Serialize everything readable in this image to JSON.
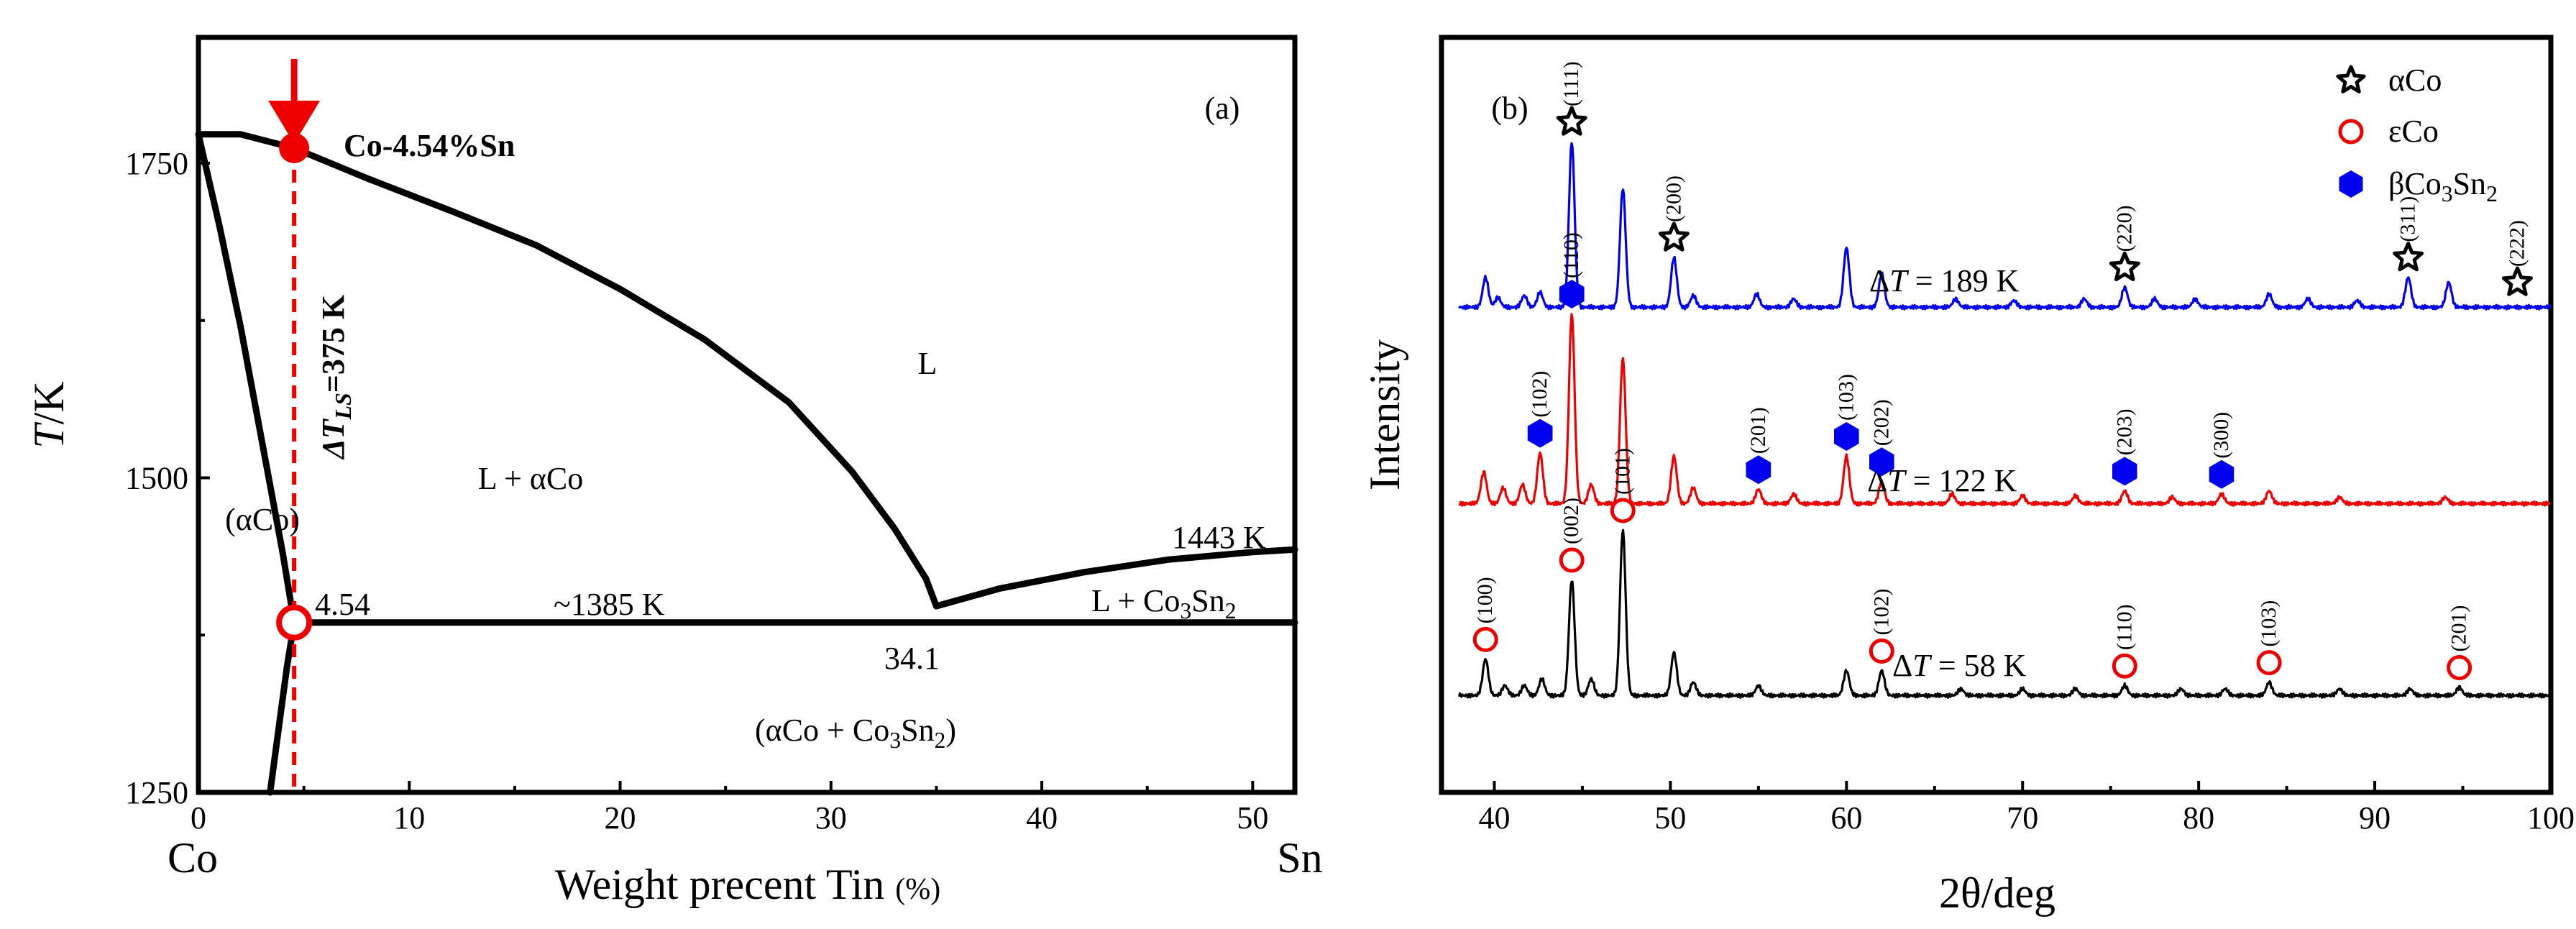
{
  "chart_data": [
    {
      "type": "line",
      "panel": "(a)",
      "title": "",
      "xlabel": "Weight precent Tin",
      "xlabel_unit": "(%)",
      "ylabel": "T/K",
      "xlim": [
        0,
        52
      ],
      "ylim": [
        1250,
        1850
      ],
      "xticks": [
        0,
        10,
        20,
        30,
        40,
        50
      ],
      "yticks": [
        1250,
        1500,
        1750
      ],
      "end_labels": {
        "left": "Co",
        "right": "Sn"
      },
      "series": [
        {
          "name": "liquidus_aCo",
          "x": [
            0,
            2,
            4.54,
            8,
            12,
            16,
            20,
            24,
            28,
            31,
            33,
            34.5,
            35
          ],
          "y": [
            1773,
            1773,
            1762,
            1738,
            1712,
            1685,
            1650,
            1610,
            1560,
            1505,
            1460,
            1420,
            1398
          ]
        },
        {
          "name": "liquidus_Co3Sn2",
          "x": [
            35,
            38,
            42,
            46,
            50,
            52
          ],
          "y": [
            1398,
            1412,
            1425,
            1435,
            1441,
            1443
          ]
        },
        {
          "name": "solidus",
          "x": [
            0,
            1,
            2,
            3,
            4,
            4.54
          ],
          "y": [
            1773,
            1700,
            1620,
            1530,
            1440,
            1385
          ]
        },
        {
          "name": "solvus",
          "x": [
            4.54,
            4.2,
            3.8,
            3.4
          ],
          "y": [
            1385,
            1350,
            1300,
            1250
          ]
        },
        {
          "name": "eutectic_line",
          "x": [
            4.54,
            52
          ],
          "y": [
            1385,
            1385
          ]
        }
      ],
      "annotations": {
        "alloy": "Co-4.54%Sn",
        "undercooling_prefix": "ΔT",
        "undercooling_sub": "LS",
        "undercooling_value": "=375 K",
        "phase_L": "L",
        "phase_L_aCo": "L + αCo",
        "phase_aCo": "(αCo)",
        "phase_L_Co3Sn2": [
          "L + Co",
          "3",
          "Sn",
          "2"
        ],
        "phase_aCo_Co3Sn2": [
          "(αCo + Co",
          "3",
          "Sn",
          "2",
          ")"
        ],
        "eutectic_temp": "~1385 K",
        "comp_solid": "4.54",
        "comp_eutectic": "34.1",
        "temp_1443": "1443 K"
      },
      "markers": {
        "alloy_x": 4.54,
        "liquidus_T": 1762,
        "solidus_T": 1385
      }
    },
    {
      "type": "line",
      "panel": "(b)",
      "xlabel": "2θ/deg",
      "ylabel": "Intensity",
      "xlim": [
        37,
        100
      ],
      "xticks": [
        40,
        50,
        60,
        70,
        80,
        90,
        100
      ],
      "legend": {
        "position": "top-right",
        "entries": [
          {
            "symbol": "star",
            "label": "αCo"
          },
          {
            "symbol": "circle",
            "label": "εCo"
          },
          {
            "symbol": "hexagon",
            "label_parts": [
              "βCo",
              "3",
              "Sn",
              "2"
            ]
          }
        ]
      },
      "series": [
        {
          "name": "ΔT = 189 K",
          "label_prefix": "Δ",
          "label_var": "T",
          "label_value": " = 189 K",
          "color": "#0000ee",
          "baseline": 0.0,
          "peaks": [
            [
              39.5,
              0.18
            ],
            [
              40.2,
              0.06
            ],
            [
              41.7,
              0.07
            ],
            [
              42.6,
              0.09
            ],
            [
              44.4,
              1.0
            ],
            [
              47.3,
              0.72
            ],
            [
              50.2,
              0.3
            ],
            [
              51.3,
              0.07
            ],
            [
              54.9,
              0.08
            ],
            [
              57.0,
              0.05
            ],
            [
              60.0,
              0.36
            ],
            [
              62.0,
              0.2
            ],
            [
              66.2,
              0.05
            ],
            [
              69.5,
              0.04
            ],
            [
              73.5,
              0.05
            ],
            [
              75.8,
              0.12
            ],
            [
              77.5,
              0.05
            ],
            [
              79.8,
              0.05
            ],
            [
              84.0,
              0.08
            ],
            [
              86.2,
              0.05
            ],
            [
              89.0,
              0.04
            ],
            [
              91.9,
              0.18
            ],
            [
              94.2,
              0.15
            ]
          ],
          "markers": [
            {
              "symbol": "star",
              "x": 44.4,
              "hkl": "(111)"
            },
            {
              "symbol": "star",
              "x": 50.2,
              "hkl": "(200)"
            },
            {
              "symbol": "star",
              "x": 75.8,
              "hkl": "(220)"
            },
            {
              "symbol": "star",
              "x": 91.9,
              "hkl": "(311)"
            },
            {
              "symbol": "star",
              "x": 98.1,
              "hkl": "(222)"
            }
          ]
        },
        {
          "name": "ΔT = 122 K",
          "label_prefix": "Δ",
          "label_var": "T",
          "label_value": " = 122 K",
          "color": "#ee0000",
          "baseline": 0.0,
          "peaks": [
            [
              39.4,
              0.2
            ],
            [
              40.5,
              0.1
            ],
            [
              41.6,
              0.12
            ],
            [
              42.6,
              0.32
            ],
            [
              44.4,
              1.2
            ],
            [
              45.5,
              0.12
            ],
            [
              47.3,
              0.92
            ],
            [
              50.2,
              0.3
            ],
            [
              51.3,
              0.1
            ],
            [
              55.0,
              0.09
            ],
            [
              57.0,
              0.06
            ],
            [
              60.0,
              0.3
            ],
            [
              62.0,
              0.14
            ],
            [
              66.0,
              0.06
            ],
            [
              70.0,
              0.05
            ],
            [
              73.0,
              0.05
            ],
            [
              75.8,
              0.08
            ],
            [
              78.5,
              0.04
            ],
            [
              81.3,
              0.06
            ],
            [
              84.0,
              0.08
            ],
            [
              88.0,
              0.04
            ],
            [
              94.0,
              0.04
            ]
          ],
          "markers": [
            {
              "symbol": "hexagon",
              "x": 42.6,
              "hkl": "(102)"
            },
            {
              "symbol": "hexagon",
              "x": 44.4,
              "hkl": "(110)"
            },
            {
              "symbol": "hexagon",
              "x": 55.0,
              "hkl": "(201)"
            },
            {
              "symbol": "hexagon",
              "x": 60.0,
              "hkl": "(103)"
            },
            {
              "symbol": "hexagon",
              "x": 62.0,
              "hkl": "(202)"
            },
            {
              "symbol": "hexagon",
              "x": 75.8,
              "hkl": "(203)"
            },
            {
              "symbol": "hexagon",
              "x": 81.3,
              "hkl": "(300)"
            }
          ]
        },
        {
          "name": "ΔT = 58 K",
          "label_prefix": "Δ",
          "label_var": "T",
          "label_value": " = 58 K",
          "color": "#000000",
          "baseline": 0.0,
          "peaks": [
            [
              39.5,
              0.22
            ],
            [
              40.6,
              0.06
            ],
            [
              41.7,
              0.06
            ],
            [
              42.7,
              0.1
            ],
            [
              44.4,
              0.7
            ],
            [
              45.5,
              0.1
            ],
            [
              47.3,
              1.0
            ],
            [
              50.2,
              0.26
            ],
            [
              51.3,
              0.08
            ],
            [
              55.0,
              0.06
            ],
            [
              60.0,
              0.15
            ],
            [
              62.0,
              0.15
            ],
            [
              66.5,
              0.04
            ],
            [
              70.0,
              0.04
            ],
            [
              73.0,
              0.04
            ],
            [
              75.8,
              0.06
            ],
            [
              79.0,
              0.04
            ],
            [
              81.5,
              0.04
            ],
            [
              84.0,
              0.08
            ],
            [
              88.0,
              0.04
            ],
            [
              92.0,
              0.04
            ],
            [
              94.8,
              0.05
            ]
          ],
          "markers": [
            {
              "symbol": "circle",
              "x": 39.5,
              "hkl": "(100)"
            },
            {
              "symbol": "circle",
              "x": 44.4,
              "hkl": "(002)"
            },
            {
              "symbol": "circle",
              "x": 47.3,
              "hkl": "(101)"
            },
            {
              "symbol": "circle",
              "x": 62.0,
              "hkl": "(102)"
            },
            {
              "symbol": "circle",
              "x": 75.8,
              "hkl": "(110)"
            },
            {
              "symbol": "circle",
              "x": 84.0,
              "hkl": "(103)"
            },
            {
              "symbol": "circle",
              "x": 94.8,
              "hkl": "(201)"
            }
          ]
        }
      ]
    }
  ],
  "colors": {
    "accent_blue": "#0000ee",
    "accent_red": "#ee0000",
    "hex_fill": "#0000ee"
  }
}
